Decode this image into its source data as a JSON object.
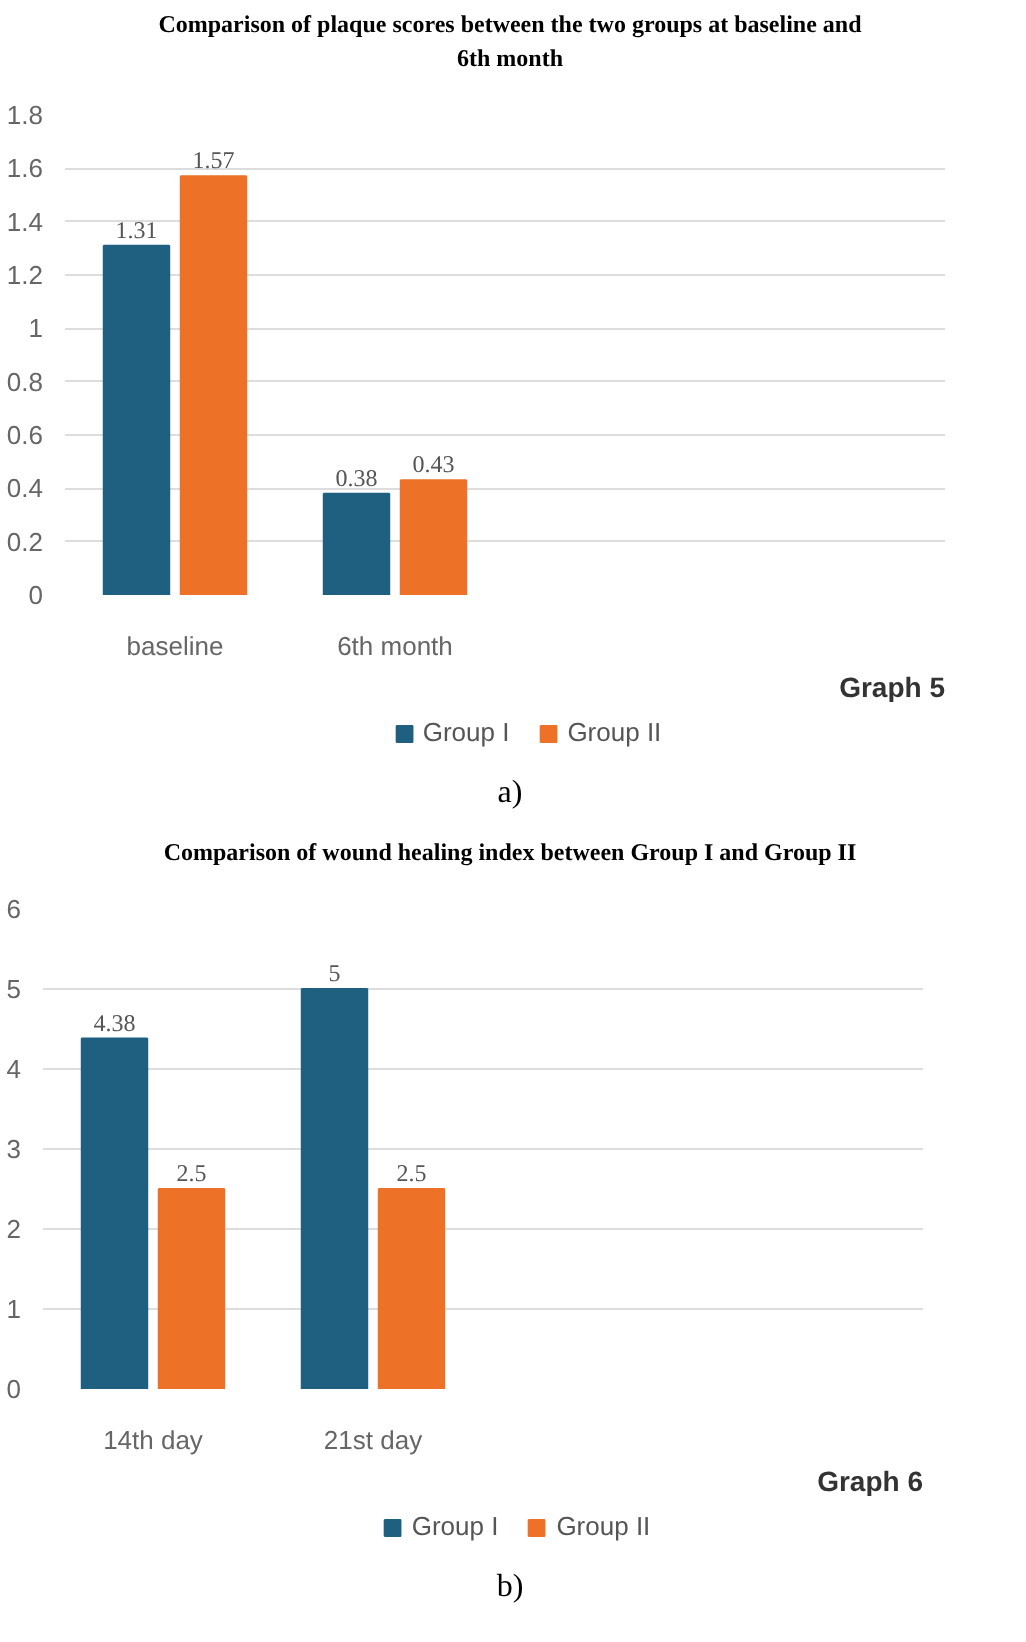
{
  "chart_data": [
    {
      "type": "bar",
      "title": "Comparison of plaque scores between the two groups at baseline and 6th month",
      "categories": [
        "baseline",
        "6th month",
        null,
        null
      ],
      "series": [
        {
          "name": "Group I",
          "color": "#1f5f80",
          "values": [
            1.31,
            0.38,
            null,
            null
          ]
        },
        {
          "name": "Group II",
          "color": "#ee7128",
          "values": [
            1.57,
            0.43,
            null,
            null
          ]
        }
      ],
      "ylim": [
        0,
        1.8
      ],
      "yticks": [
        0,
        0.2,
        0.4,
        0.6,
        0.8,
        1,
        1.2,
        1.4,
        1.6,
        1.8
      ],
      "grid": "y",
      "legend": "bottom",
      "data_labels": true,
      "annotations": [
        "Graph 5",
        "a)"
      ]
    },
    {
      "type": "bar",
      "title": "Comparison of wound healing index between Group I and Group II",
      "categories": [
        "14th day",
        "21st day",
        null,
        null
      ],
      "series": [
        {
          "name": "Group I",
          "color": "#1f5f80",
          "values": [
            4.38,
            5,
            null,
            null
          ]
        },
        {
          "name": "Group II",
          "color": "#ee7128",
          "values": [
            2.5,
            2.5,
            null,
            null
          ]
        }
      ],
      "ylim": [
        0,
        6
      ],
      "yticks": [
        0,
        1,
        2,
        3,
        4,
        5,
        6
      ],
      "grid": "y",
      "legend": "bottom",
      "data_labels": true,
      "annotations": [
        "Graph 6",
        "b)"
      ]
    }
  ]
}
